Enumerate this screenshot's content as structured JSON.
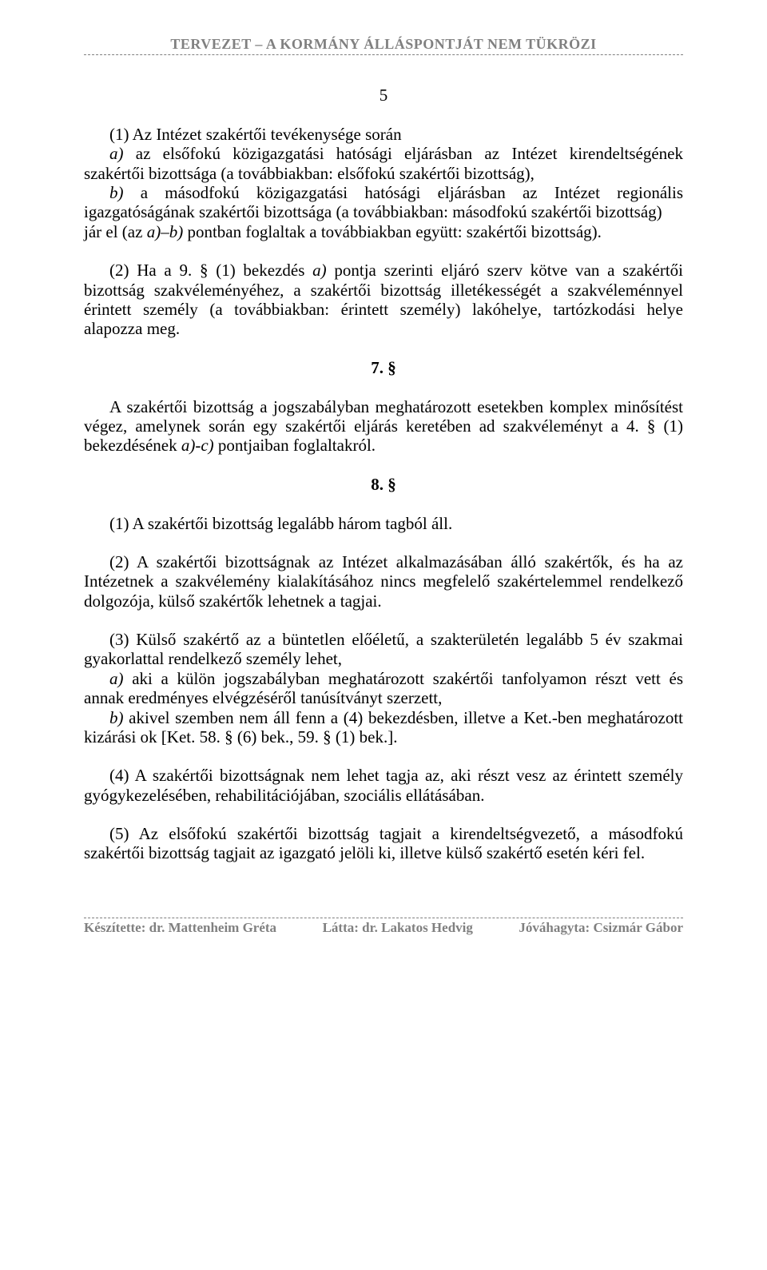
{
  "colors": {
    "text": "#000000",
    "header_footer": "#808080",
    "background": "#ffffff"
  },
  "typography": {
    "body_family": "Times New Roman",
    "body_size_pt": 16,
    "header_size_pt": 13,
    "footer_size_pt": 13
  },
  "header": {
    "title": "TERVEZET – A KORMÁNY ÁLLÁSPONTJÁT NEM TÜKRÖZI"
  },
  "page_number": "5",
  "paragraphs": {
    "p1_a": "(1) Az Intézet szakértői tevékenysége során",
    "p1_b_prefix": "a)",
    "p1_b": " az elsőfokú közigazgatási hatósági eljárásban az Intézet kirendeltségének szakértői bizottsága (a továbbiakban: elsőfokú szakértői bizottság),",
    "p1_c_prefix": "b)",
    "p1_c": " a másodfokú közigazgatási hatósági eljárásban az Intézet regionális igazgatóságának szakértői bizottsága (a továbbiakban: másodfokú szakértői bizottság)",
    "p1_d_1": "jár el (az ",
    "p1_d_italic": "a)–b)",
    "p1_d_2": " pontban foglaltak a továbbiakban együtt: szakértői bizottság).",
    "p2_1": "(2) Ha a 9. § (1) bekezdés ",
    "p2_italic": "a)",
    "p2_2": " pontja szerinti eljáró szerv kötve van a szakértői bizottság szakvéleményéhez, a szakértői bizottság illetékességét a szakvéleménnyel érintett személy (a továbbiakban: érintett személy) lakóhelye, tartózkodási helye alapozza meg.",
    "s7": "7. §",
    "p3_1": "A szakértői bizottság a jogszabályban meghatározott esetekben komplex minősítést végez, amelynek során egy szakértői eljárás keretében ad szakvéleményt a 4. § (1) bekezdésének ",
    "p3_italic": "a)-c)",
    "p3_2": " pontjaiban foglaltakról.",
    "s8": "8. §",
    "p4": "(1) A szakértői bizottság legalább három tagból áll.",
    "p5": "(2) A szakértői bizottságnak az Intézet alkalmazásában álló szakértők, és ha az Intézetnek a szakvélemény kialakításához nincs megfelelő szakértelemmel rendelkező dolgozója, külső szakértők lehetnek a tagjai.",
    "p6_a": "(3) Külső szakértő az a büntetlen előéletű, a szakterületén legalább 5 év szakmai gyakorlattal rendelkező személy lehet,",
    "p6_b_prefix": "a)",
    "p6_b": " aki a külön jogszabályban meghatározott szakértői tanfolyamon részt vett és annak eredményes elvégzéséről tanúsítványt szerzett,",
    "p6_c_prefix": "b)",
    "p6_c": " akivel szemben nem áll fenn a (4) bekezdésben, illetve a Ket.-ben meghatározott kizárási ok [Ket. 58. § (6) bek., 59. § (1) bek.].",
    "p7": "(4) A szakértői bizottságnak nem lehet tagja az, aki részt vesz az érintett személy gyógykezelésében, rehabilitációjában, szociális ellátásában.",
    "p8": "(5) Az elsőfokú szakértői bizottság tagjait a kirendeltségvezető, a másodfokú szakértői bizottság tagjait az igazgató jelöli ki, illetve külső szakértő esetén kéri fel."
  },
  "footer": {
    "left_label": "Készítette: ",
    "left_name": "dr. Mattenheim Gréta",
    "mid_label": "Látta: ",
    "mid_name": "dr. Lakatos Hedvig",
    "right_label": "Jóváhagyta: ",
    "right_name": "Csizmár Gábor"
  }
}
